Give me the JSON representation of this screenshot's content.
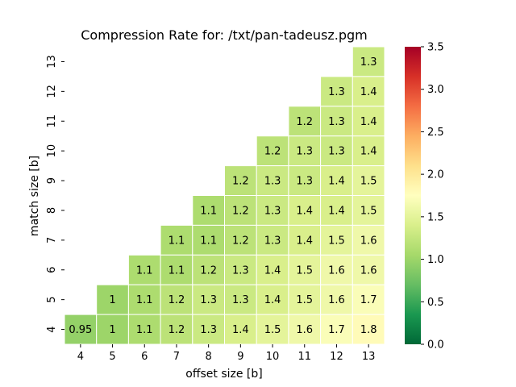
{
  "chart_data": {
    "type": "heatmap",
    "title": "Compression Rate for: /txt/pan-tadeusz.pgm",
    "xlabel": "offset size [b]",
    "ylabel": "match size [b]",
    "x": [
      "4",
      "5",
      "6",
      "7",
      "8",
      "9",
      "10",
      "11",
      "12",
      "13"
    ],
    "y": [
      "13",
      "12",
      "11",
      "10",
      "9",
      "8",
      "7",
      "6",
      "5",
      "4"
    ],
    "values": [
      [
        null,
        null,
        null,
        null,
        null,
        null,
        null,
        null,
        null,
        1.3
      ],
      [
        null,
        null,
        null,
        null,
        null,
        null,
        null,
        null,
        1.3,
        1.4
      ],
      [
        null,
        null,
        null,
        null,
        null,
        null,
        null,
        1.2,
        1.3,
        1.4
      ],
      [
        null,
        null,
        null,
        null,
        null,
        null,
        1.2,
        1.3,
        1.3,
        1.4
      ],
      [
        null,
        null,
        null,
        null,
        null,
        1.2,
        1.3,
        1.3,
        1.4,
        1.5
      ],
      [
        null,
        null,
        null,
        null,
        1.1,
        1.2,
        1.3,
        1.4,
        1.4,
        1.5
      ],
      [
        null,
        null,
        null,
        1.1,
        1.1,
        1.2,
        1.3,
        1.4,
        1.5,
        1.6
      ],
      [
        null,
        null,
        1.1,
        1.1,
        1.2,
        1.3,
        1.4,
        1.5,
        1.6,
        1.6
      ],
      [
        null,
        1,
        1.1,
        1.2,
        1.3,
        1.3,
        1.4,
        1.5,
        1.6,
        1.7
      ],
      [
        0.95,
        1,
        1.1,
        1.2,
        1.3,
        1.4,
        1.5,
        1.6,
        1.7,
        1.8
      ]
    ],
    "colorbar": {
      "colormap": "RdYlGn_r",
      "range": [
        0,
        3.5
      ],
      "ticks": [
        "0.0",
        "0.5",
        "1.0",
        "1.5",
        "2.0",
        "2.5",
        "3.0",
        "3.5"
      ]
    },
    "annotated": true,
    "grid": false
  }
}
